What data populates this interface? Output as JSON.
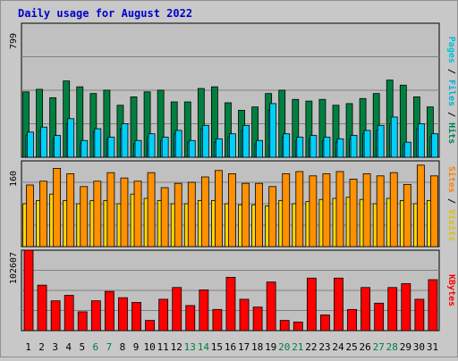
{
  "title": "Daily usage for August 2022",
  "colors": {
    "page_bg": "#c8c8c8",
    "panel_bg": "#c0c0c0",
    "title": "#0000cc",
    "hits": "#008040",
    "hits_label": "#00805c",
    "files": "#00d0f8",
    "files_label": "#00b0d8",
    "pages": "#00c0f0",
    "pages_label": "#00c0d8",
    "visits": "#ffd700",
    "visits_label": "#e0c000",
    "sites": "#ff9000",
    "sites_label": "#ff8000",
    "kbytes": "#ff0000",
    "kbytes_label": "#ff0000",
    "weekend_day": "#008040",
    "weekday": "#000000"
  },
  "chart_data": [
    {
      "type": "bar",
      "panel": "hits-files-pages",
      "title": "",
      "ylabel": "Pages / Files / Hits",
      "ytick_max_label": "799",
      "ylim": [
        0,
        799
      ],
      "grid": true,
      "categories": [
        "1",
        "2",
        "3",
        "4",
        "5",
        "6",
        "7",
        "8",
        "9",
        "10",
        "11",
        "12",
        "13",
        "14",
        "15",
        "16",
        "17",
        "18",
        "19",
        "20",
        "21",
        "22",
        "23",
        "24",
        "25",
        "26",
        "27",
        "28",
        "29",
        "30",
        "31"
      ],
      "weekend_days": [
        "6",
        "7",
        "13",
        "14",
        "20",
        "21",
        "27",
        "28"
      ],
      "series": [
        {
          "name": "Hits",
          "values": [
            390,
            405,
            355,
            455,
            420,
            380,
            400,
            310,
            360,
            390,
            400,
            330,
            330,
            410,
            420,
            325,
            280,
            300,
            380,
            400,
            345,
            335,
            345,
            310,
            320,
            350,
            380,
            460,
            430,
            360,
            300
          ]
        },
        {
          "name": "Files",
          "values": [
            150,
            180,
            130,
            230,
            100,
            170,
            120,
            200,
            100,
            140,
            120,
            160,
            100,
            190,
            110,
            140,
            190,
            100,
            320,
            140,
            120,
            130,
            120,
            110,
            130,
            160,
            190,
            240,
            90,
            200,
            140
          ]
        },
        {
          "name": "Pages",
          "values": [
            130,
            160,
            110,
            200,
            80,
            150,
            110,
            170,
            80,
            120,
            100,
            140,
            90,
            170,
            90,
            120,
            160,
            80,
            280,
            120,
            100,
            110,
            100,
            90,
            110,
            140,
            160,
            200,
            80,
            170,
            120
          ]
        }
      ]
    },
    {
      "type": "bar",
      "panel": "visits-sites",
      "title": "",
      "ylabel": "Sites / Visits",
      "ytick_max_label": "160",
      "ylim": [
        0,
        160
      ],
      "grid": true,
      "categories": [
        "1",
        "2",
        "3",
        "4",
        "5",
        "6",
        "7",
        "8",
        "9",
        "10",
        "11",
        "12",
        "13",
        "14",
        "15",
        "16",
        "17",
        "18",
        "19",
        "20",
        "21",
        "22",
        "23",
        "24",
        "25",
        "26",
        "27",
        "28",
        "29",
        "30",
        "31"
      ],
      "series": [
        {
          "name": "Visits",
          "values": [
            80,
            86,
            98,
            86,
            80,
            86,
            86,
            80,
            98,
            90,
            86,
            80,
            80,
            86,
            86,
            80,
            78,
            78,
            76,
            86,
            80,
            84,
            88,
            90,
            92,
            88,
            80,
            90,
            86,
            80,
            86
          ]
        },
        {
          "name": "Sites",
          "values": [
            115,
            122,
            146,
            136,
            112,
            122,
            138,
            128,
            122,
            138,
            110,
            118,
            120,
            130,
            142,
            136,
            118,
            118,
            112,
            136,
            140,
            132,
            136,
            140,
            126,
            136,
            132,
            138,
            116,
            152,
            132
          ]
        }
      ]
    },
    {
      "type": "bar",
      "panel": "kbytes",
      "title": "",
      "ylabel": "KBytes",
      "ytick_max_label": "102607",
      "ylim": [
        0,
        102607
      ],
      "grid": true,
      "categories": [
        "1",
        "2",
        "3",
        "4",
        "5",
        "6",
        "7",
        "8",
        "9",
        "10",
        "11",
        "12",
        "13",
        "14",
        "15",
        "16",
        "17",
        "18",
        "19",
        "20",
        "21",
        "22",
        "23",
        "24",
        "25",
        "26",
        "27",
        "28",
        "29",
        "30",
        "31"
      ],
      "series": [
        {
          "name": "KBytes",
          "values": [
            102607,
            58000,
            38000,
            45000,
            24000,
            38000,
            50000,
            42000,
            36000,
            13000,
            40000,
            55000,
            32000,
            52000,
            27000,
            68000,
            40000,
            30000,
            62000,
            13000,
            11000,
            67000,
            20000,
            67000,
            27000,
            55000,
            35000,
            55000,
            60000,
            40000,
            65000
          ]
        }
      ]
    }
  ]
}
